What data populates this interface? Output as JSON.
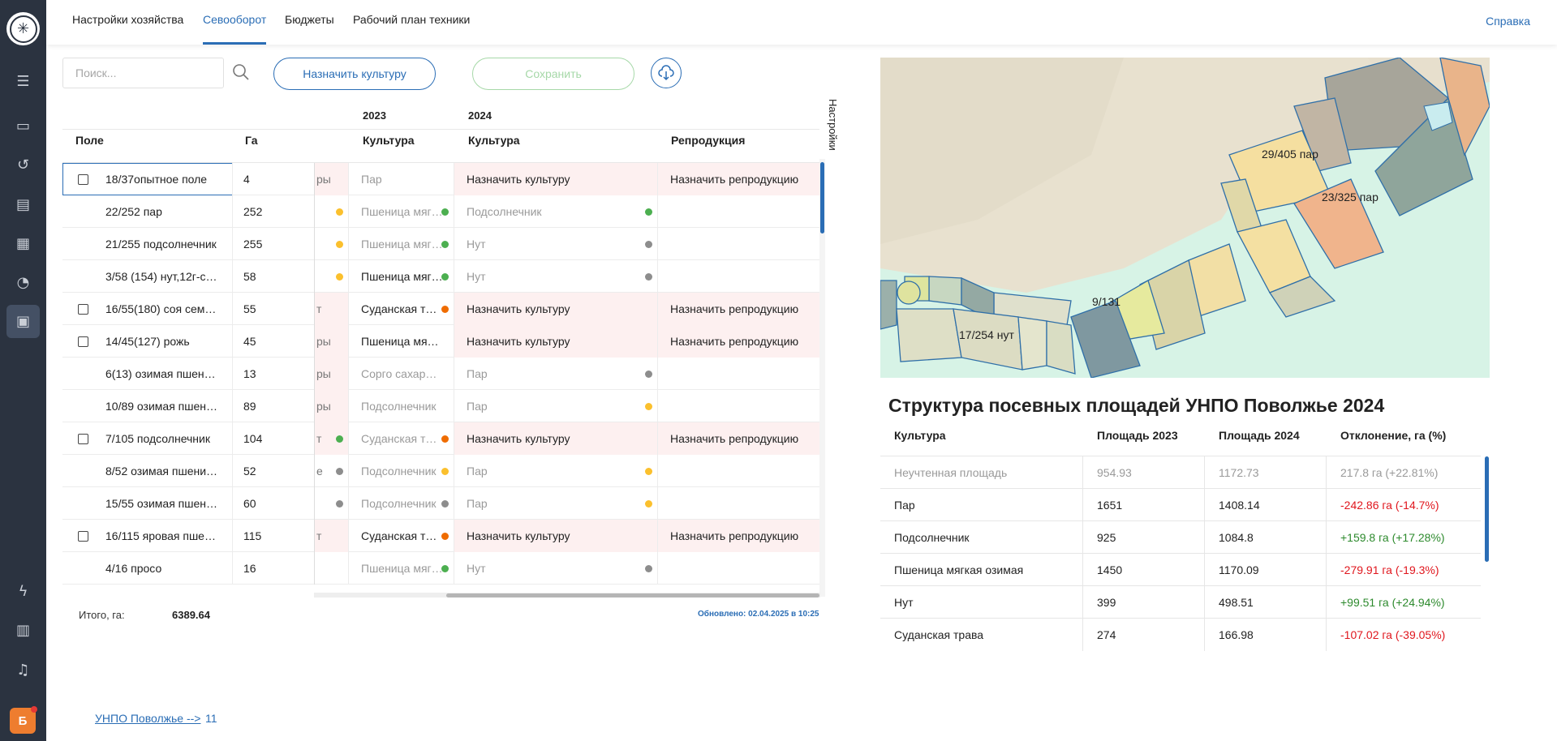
{
  "nav": {
    "tabs": [
      {
        "label": "Настройки хозяйства"
      },
      {
        "label": "Севооборот"
      },
      {
        "label": "Бюджеты"
      },
      {
        "label": "Рабочий план техники"
      }
    ],
    "help": "Справка",
    "avatar_initial": "Б",
    "rail_icons": [
      "logo-icon",
      "menu-icon",
      "monitor-icon",
      "history-icon",
      "clipboard-icon",
      "archive-icon",
      "pie-chart-icon",
      "briefcase-icon",
      "lightning-icon",
      "store-icon",
      "bell-icon"
    ]
  },
  "toolbar": {
    "search_placeholder": "Поиск...",
    "assign_label": "Назначить культуру",
    "save_label": "Сохранить"
  },
  "grid": {
    "year_2023": "2023",
    "year_2024": "2024",
    "headers": {
      "field": "Поле",
      "ga": "Га",
      "crop_2023": "Культура",
      "crop_2024": "Культура",
      "repro": "Репродукция"
    },
    "settings_label": "Настройки",
    "rows": [
      {
        "field": "18/37опытное поле",
        "ga": "4",
        "cut": "ры",
        "c23": "Пар",
        "c24": "Назначить культуру",
        "rep": "Назначить репродукцию"
      },
      {
        "field": "22/252 пар",
        "ga": "252",
        "cut": "",
        "c23": "Пшеница мяг…",
        "c24": "Подсолнечник",
        "rep": ""
      },
      {
        "field": "21/255 подсолнечник",
        "ga": "255",
        "cut": "",
        "c23": "Пшеница мяг…",
        "c24": "Нут",
        "rep": ""
      },
      {
        "field": "3/58 (154) нут,12г-с…",
        "ga": "58",
        "cut": "",
        "c23": "Пшеница мяг…",
        "c24": "Нут",
        "rep": ""
      },
      {
        "field": "16/55(180) соя сем…",
        "ga": "55",
        "cut": "т",
        "c23": "Суданская т…",
        "c24": "Назначить культуру",
        "rep": "Назначить репродукцию"
      },
      {
        "field": "14/45(127) рожь",
        "ga": "45",
        "cut": "ры",
        "c23": "Пшеница мя…",
        "c24": "Назначить культуру",
        "rep": "Назначить репродукцию"
      },
      {
        "field": "6(13) озимая пшен…",
        "ga": "13",
        "cut": "ры",
        "c23": "Сорго сахар…",
        "c24": "Пар",
        "rep": ""
      },
      {
        "field": "10/89 озимая пшен…",
        "ga": "89",
        "cut": "ры",
        "c23": "Подсолнечник",
        "c24": "Пар",
        "rep": ""
      },
      {
        "field": "7/105 подсолнечник",
        "ga": "104",
        "cut": "т",
        "c23": "Суданская т…",
        "c24": "Назначить культуру",
        "rep": "Назначить репродукцию"
      },
      {
        "field": "8/52 озимая пшени…",
        "ga": "52",
        "cut": "е",
        "c23": "Подсолнечник",
        "c24": "Пар",
        "rep": ""
      },
      {
        "field": "15/55 озимая пшен…",
        "ga": "60",
        "cut": "",
        "c23": "Подсолнечник",
        "c24": "Пар",
        "rep": ""
      },
      {
        "field": "16/115 яровая пше…",
        "ga": "115",
        "cut": "т",
        "c23": "Суданская т…",
        "c24": "Назначить культуру",
        "rep": "Назначить репродукцию"
      },
      {
        "field": "4/16 просо",
        "ga": "16",
        "cut": "",
        "c23": "Пшеница мяг…",
        "c24": "Нут",
        "rep": ""
      }
    ],
    "totals_label": "Итого, га:",
    "totals_value": "6389.64",
    "updated": "Обновлено: 02.04.2025 в 10:25"
  },
  "map": {
    "labels": [
      "29/405 пар",
      "23/325 пар",
      "9/131",
      "17/254 нут"
    ]
  },
  "stats": {
    "title": "Структура посевных площадей УНПО Поволжье 2024",
    "headers": [
      "Культура",
      "Площадь 2023",
      "Площадь 2024",
      "Отклонение, га (%)"
    ],
    "rows": [
      {
        "crop": "Неучтенная площадь",
        "a23": "954.93",
        "a24": "1172.73",
        "dev": "217.8 га (+22.81%)"
      },
      {
        "crop": "Пар",
        "a23": "1651",
        "a24": "1408.14",
        "dev": "-242.86 га (-14.7%)"
      },
      {
        "crop": "Подсолнечник",
        "a23": "925",
        "a24": "1084.8",
        "dev": "+159.8 га (+17.28%)"
      },
      {
        "crop": "Пшеница мягкая озимая",
        "a23": "1450",
        "a24": "1170.09",
        "dev": "-279.91 га (-19.3%)"
      },
      {
        "crop": "Нут",
        "a23": "399",
        "a24": "498.51",
        "dev": "+99.51 га (+24.94%)"
      },
      {
        "crop": "Суданская трава",
        "a23": "274",
        "a24": "166.98",
        "dev": "-107.02 га (-39.05%)"
      }
    ]
  },
  "footer": {
    "link": "УНПО Поволжье -->",
    "count": "11"
  },
  "colors": {
    "accent": "#2a6db5",
    "rail": "#2b3340",
    "dot_green": "#4caf50",
    "dot_yellow": "#fbc02d",
    "dot_grey": "#8d8d8d",
    "dot_orange": "#ef6c00",
    "negative": "#e0161d",
    "positive": "#2d8a2d"
  }
}
